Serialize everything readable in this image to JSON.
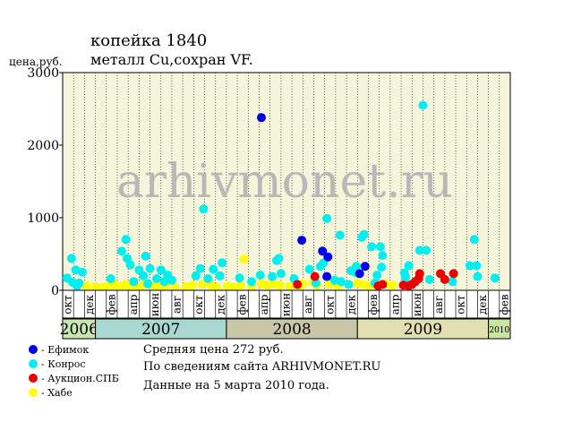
{
  "title_line1": "копейка 1840",
  "title_line2": "металл Cu,сохран VF.",
  "y_axis_label": "цена,руб.",
  "watermark": "arhivmonet.ru",
  "info": {
    "avg": "Средняя цена 272 руб.",
    "source": "По  сведениям сайта ARHIVMONET.RU",
    "date": "Данные на 5 марта 2010 года."
  },
  "chart_data": {
    "type": "scatter",
    "ylim": [
      0,
      3000
    ],
    "y_ticks": [
      0,
      1000,
      2000,
      3000
    ],
    "x_start": 0,
    "x_end": 41,
    "month_labels": [
      {
        "i": 0,
        "label": "окт"
      },
      {
        "i": 2,
        "label": "дек"
      },
      {
        "i": 4,
        "label": "фев"
      },
      {
        "i": 6,
        "label": "апр"
      },
      {
        "i": 8,
        "label": "июн"
      },
      {
        "i": 10,
        "label": "авг"
      },
      {
        "i": 12,
        "label": "окт"
      },
      {
        "i": 14,
        "label": "дек"
      },
      {
        "i": 16,
        "label": "фев"
      },
      {
        "i": 18,
        "label": "апр"
      },
      {
        "i": 20,
        "label": "июн"
      },
      {
        "i": 22,
        "label": "авг"
      },
      {
        "i": 24,
        "label": "окт"
      },
      {
        "i": 26,
        "label": "дек"
      },
      {
        "i": 28,
        "label": "фев"
      },
      {
        "i": 30,
        "label": "апр"
      },
      {
        "i": 32,
        "label": "июн"
      },
      {
        "i": 34,
        "label": "авг"
      },
      {
        "i": 36,
        "label": "окт"
      },
      {
        "i": 38,
        "label": "дек"
      },
      {
        "i": 40,
        "label": "фев"
      }
    ],
    "years": [
      {
        "label": "2006",
        "start": 0,
        "end": 3,
        "color": "#c8e6b0",
        "small": false
      },
      {
        "label": "2007",
        "start": 3,
        "end": 15,
        "color": "#a8d8d0",
        "small": false
      },
      {
        "label": "2008",
        "start": 15,
        "end": 27,
        "color": "#c8c8a8",
        "small": false
      },
      {
        "label": "2009",
        "start": 27,
        "end": 39,
        "color": "#e0e0b0",
        "small": false
      },
      {
        "label": "2010",
        "start": 39,
        "end": 41,
        "color": "#c8e6a0",
        "small": true
      }
    ],
    "series": [
      {
        "name": "- Ефимок",
        "color": "#0000ee",
        "points": [
          [
            18.2,
            2380
          ],
          [
            21.9,
            690
          ],
          [
            23.8,
            540
          ],
          [
            24.3,
            460
          ],
          [
            24.2,
            190
          ],
          [
            27.7,
            330
          ],
          [
            27.2,
            230
          ]
        ]
      },
      {
        "name": "- Конрос",
        "color": "#00f0f0",
        "points": [
          [
            0.4,
            170
          ],
          [
            0.8,
            440
          ],
          [
            1.2,
            280
          ],
          [
            1.5,
            100
          ],
          [
            1.8,
            250
          ],
          [
            1.3,
            60
          ],
          [
            0.9,
            110
          ],
          [
            4.4,
            160
          ],
          [
            5.4,
            540
          ],
          [
            5.8,
            700
          ],
          [
            6.2,
            350
          ],
          [
            5.9,
            440
          ],
          [
            6.5,
            120
          ],
          [
            7.0,
            280
          ],
          [
            7.4,
            200
          ],
          [
            7.6,
            470
          ],
          [
            8.0,
            300
          ],
          [
            7.8,
            90
          ],
          [
            8.6,
            160
          ],
          [
            9.0,
            280
          ],
          [
            9.3,
            120
          ],
          [
            9.6,
            210
          ],
          [
            10.0,
            140
          ],
          [
            12.2,
            200
          ],
          [
            12.6,
            300
          ],
          [
            12.9,
            1120
          ],
          [
            13.3,
            160
          ],
          [
            13.8,
            290
          ],
          [
            14.6,
            380
          ],
          [
            14.4,
            200
          ],
          [
            16.2,
            170
          ],
          [
            17.3,
            120
          ],
          [
            18.1,
            210
          ],
          [
            19.2,
            190
          ],
          [
            19.6,
            410
          ],
          [
            19.8,
            440
          ],
          [
            20.0,
            230
          ],
          [
            21.2,
            160
          ],
          [
            22.6,
            290
          ],
          [
            23.2,
            100
          ],
          [
            23.9,
            380
          ],
          [
            24.2,
            990
          ],
          [
            23.6,
            330
          ],
          [
            24.9,
            140
          ],
          [
            25.4,
            760
          ],
          [
            25.5,
            120
          ],
          [
            26.4,
            270
          ],
          [
            26.8,
            250
          ],
          [
            27.4,
            730
          ],
          [
            27.6,
            770
          ],
          [
            28.3,
            600
          ],
          [
            29.1,
            600
          ],
          [
            29.3,
            480
          ],
          [
            28.8,
            210
          ],
          [
            29.2,
            320
          ],
          [
            31.4,
            180
          ],
          [
            31.7,
            340
          ],
          [
            31.3,
            240
          ],
          [
            32.7,
            550
          ],
          [
            33.3,
            550
          ],
          [
            33.0,
            2550
          ],
          [
            33.6,
            150
          ],
          [
            35.7,
            120
          ],
          [
            37.3,
            340
          ],
          [
            37.7,
            700
          ],
          [
            37.9,
            340
          ],
          [
            38.0,
            190
          ],
          [
            39.6,
            170
          ],
          [
            31.8,
            80
          ],
          [
            26.2,
            80
          ],
          [
            28.6,
            100
          ],
          [
            26.9,
            330
          ]
        ]
      },
      {
        "name": "- Аукцион.СПБ",
        "color": "#ee0000",
        "points": [
          [
            21.5,
            80
          ],
          [
            23.1,
            190
          ],
          [
            28.9,
            60
          ],
          [
            29.3,
            80
          ],
          [
            31.2,
            70
          ],
          [
            31.7,
            60
          ],
          [
            32.0,
            80
          ],
          [
            32.6,
            160
          ],
          [
            32.7,
            230
          ],
          [
            32.3,
            120
          ],
          [
            34.6,
            230
          ],
          [
            35.0,
            150
          ],
          [
            35.8,
            230
          ]
        ]
      },
      {
        "name": "- Хабе",
        "color": "#ffff00",
        "points": [
          [
            2.2,
            60
          ],
          [
            3.0,
            50
          ],
          [
            3.7,
            40
          ],
          [
            4.2,
            60
          ],
          [
            4.8,
            80
          ],
          [
            5.2,
            50
          ],
          [
            5.7,
            80
          ],
          [
            6.1,
            40
          ],
          [
            6.6,
            70
          ],
          [
            7.1,
            50
          ],
          [
            7.5,
            80
          ],
          [
            8.3,
            50
          ],
          [
            8.9,
            40
          ],
          [
            9.4,
            60
          ],
          [
            10.3,
            40
          ],
          [
            11.3,
            50
          ],
          [
            11.9,
            70
          ],
          [
            12.8,
            80
          ],
          [
            13.6,
            60
          ],
          [
            14.1,
            40
          ],
          [
            15.1,
            60
          ],
          [
            15.6,
            40
          ],
          [
            16.3,
            70
          ],
          [
            16.6,
            430
          ],
          [
            17.3,
            40
          ],
          [
            18.2,
            90
          ],
          [
            18.7,
            70
          ],
          [
            19.3,
            90
          ],
          [
            19.9,
            70
          ],
          [
            20.8,
            50
          ],
          [
            21.7,
            60
          ],
          [
            22.0,
            90
          ],
          [
            22.9,
            110
          ],
          [
            23.3,
            70
          ],
          [
            24.4,
            80
          ],
          [
            25.2,
            50
          ],
          [
            27.0,
            100
          ],
          [
            27.5,
            80
          ],
          [
            28.0,
            60
          ],
          [
            28.5,
            80
          ],
          [
            29.5,
            90
          ],
          [
            30.2,
            70
          ]
        ]
      }
    ]
  }
}
